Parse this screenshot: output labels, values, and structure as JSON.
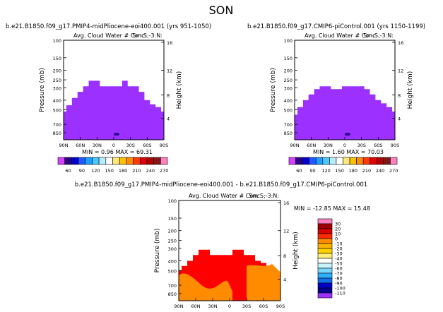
{
  "page_title": "SON",
  "colors": {
    "purple": "#9b30ff",
    "red": "#ff0000",
    "orange": "#ff8c00",
    "left_bar": [
      "#d442ff",
      "#2a0088",
      "#0000cd",
      "#1e5aff",
      "#1c9dff",
      "#48c8ff",
      "#b8ecff",
      "#ffffff",
      "#ffe87a",
      "#ffc000",
      "#ff8c00",
      "#ff3c00",
      "#e00000",
      "#b00000",
      "#801818",
      "#ff80c0"
    ],
    "diff_bar": [
      "#ff80c0",
      "#a00000",
      "#d80000",
      "#ff2a00",
      "#ff8c00",
      "#ffb400",
      "#ffd200",
      "#fff07a",
      "#ffffff",
      "#c8f4ff",
      "#7ad8ff",
      "#2ab0ff",
      "#1070e6",
      "#0000cd",
      "#000090",
      "#9b30ff"
    ]
  },
  "chart_data": [
    {
      "type": "heatmap",
      "panel": "midPliocene",
      "title": "b.e21.B1850.f09_g17.PMIP4-midPliocene-eoi400.001  (yrs 951-1050)",
      "subtitle": "Avg. Cloud Water # Conc.",
      "right_label": "Sm:S;-3:N:",
      "ylabel": "Pressure (mb)",
      "ylabel_right": "Height (km)",
      "x_ticks": [
        "90N",
        "60N",
        "30N",
        "0",
        "30S",
        "60S",
        "90S"
      ],
      "y_ticks": [
        "100",
        "150",
        "200",
        "250",
        "300",
        "400",
        "500",
        "700",
        "850"
      ],
      "right_ticks": [
        "16",
        "12",
        "8",
        "4"
      ],
      "ylim": [
        1000,
        100
      ],
      "stats": {
        "min_label": "MIN =",
        "min": "0.96",
        "max_label": "MAX =",
        "max": "69.31"
      },
      "colorbar_labels": [
        "60",
        "90",
        "120",
        "150",
        "180",
        "210",
        "240",
        "270"
      ],
      "cloud_top_profile": [
        [
          -90,
          520
        ],
        [
          -80,
          450
        ],
        [
          -70,
          380
        ],
        [
          -60,
          330
        ],
        [
          -50,
          290
        ],
        [
          -40,
          255
        ],
        [
          -30,
          255
        ],
        [
          -20,
          290
        ],
        [
          -10,
          290
        ],
        [
          0,
          290
        ],
        [
          10,
          290
        ],
        [
          20,
          255
        ],
        [
          30,
          290
        ],
        [
          40,
          290
        ],
        [
          50,
          330
        ],
        [
          60,
          400
        ],
        [
          70,
          440
        ],
        [
          80,
          470
        ],
        [
          90,
          520
        ]
      ]
    },
    {
      "type": "heatmap",
      "panel": "piControl",
      "title": "b.e21.B1850.f09_g17.CMIP6-piControl.001  (yrs 1150-1199)",
      "subtitle": "Avg. Cloud Water # Conc.",
      "right_label": "Sm:S;-3:N:",
      "ylabel": "Pressure (mb)",
      "ylabel_right": "Height (km)",
      "x_ticks": [
        "90N",
        "60N",
        "30N",
        "0",
        "30S",
        "60S",
        "90S"
      ],
      "y_ticks": [
        "100",
        "150",
        "200",
        "250",
        "300",
        "400",
        "500",
        "700",
        "850"
      ],
      "right_ticks": [
        "16",
        "12",
        "8",
        "4"
      ],
      "ylim": [
        1000,
        100
      ],
      "stats": {
        "min_label": "MIN =",
        "min": "1.60",
        "max_label": "MAX =",
        "max": "70.03"
      },
      "colorbar_labels": [
        "60",
        "90",
        "120",
        "150",
        "180",
        "210",
        "240",
        "270"
      ],
      "cloud_top_profile": [
        [
          -90,
          560
        ],
        [
          -80,
          470
        ],
        [
          -70,
          400
        ],
        [
          -60,
          350
        ],
        [
          -50,
          310
        ],
        [
          -40,
          290
        ],
        [
          -30,
          290
        ],
        [
          -20,
          310
        ],
        [
          -10,
          310
        ],
        [
          0,
          290
        ],
        [
          10,
          290
        ],
        [
          20,
          290
        ],
        [
          30,
          290
        ],
        [
          40,
          310
        ],
        [
          50,
          350
        ],
        [
          60,
          400
        ],
        [
          70,
          430
        ],
        [
          80,
          470
        ],
        [
          90,
          520
        ]
      ]
    },
    {
      "type": "heatmap",
      "panel": "difference",
      "title": "b.e21.B1850.f09_g17.PMIP4-midPliocene-eoi400.001  -  b.e21.B1850.f09_g17.CMIP6-piControl.001",
      "subtitle": "Avg. Cloud Water # Conc.",
      "right_label": "Sm:S;-3:N:",
      "ylabel": "Pressure (mb)",
      "ylabel_right": "Height (km)",
      "x_ticks": [
        "90N",
        "60N",
        "30N",
        "0",
        "30S",
        "60S",
        "90S"
      ],
      "y_ticks": [
        "100",
        "150",
        "200",
        "250",
        "300",
        "400",
        "500",
        "700",
        "850"
      ],
      "right_ticks": [
        "16",
        "12",
        "8",
        "4"
      ],
      "ylim": [
        1000,
        100
      ],
      "stats": {
        "min_label": "MIN =",
        "min": "-12.85",
        "max_label": "MAX =",
        "max": "15.48"
      },
      "colorbar_labels": [
        "30",
        "20",
        "10",
        "0",
        "-10",
        "-20",
        "-30",
        "-40",
        "-50",
        "-60",
        "-70",
        "-80",
        "-90",
        "-100",
        "-110"
      ],
      "cloud_top_profile": [
        [
          -90,
          500
        ],
        [
          -80,
          450
        ],
        [
          -70,
          400
        ],
        [
          -60,
          350
        ],
        [
          -50,
          310
        ],
        [
          -40,
          310
        ],
        [
          -30,
          350
        ],
        [
          -20,
          350
        ],
        [
          -10,
          350
        ],
        [
          0,
          350
        ],
        [
          10,
          310
        ],
        [
          20,
          310
        ],
        [
          30,
          350
        ],
        [
          40,
          350
        ],
        [
          50,
          400
        ],
        [
          60,
          420
        ],
        [
          70,
          450
        ],
        [
          80,
          500
        ],
        [
          90,
          560
        ]
      ]
    }
  ]
}
